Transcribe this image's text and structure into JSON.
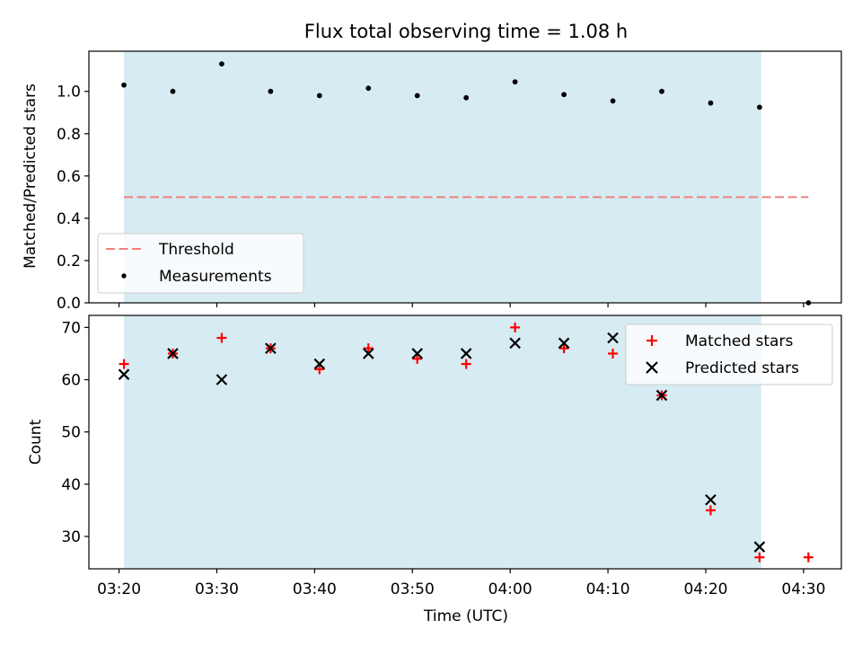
{
  "colors": {
    "observing_band": "#add8e6",
    "threshold": "#f08080",
    "measurement": "#000000",
    "matched": "#ff0000",
    "predicted": "#000000",
    "background": "#ffffff"
  },
  "chart_data": [
    {
      "type": "scatter",
      "title": "Flux total observing time = 1.08 h",
      "xlabel": "",
      "ylabel": "Matched/Predicted stars",
      "xlim": [
        "03:16:55",
        "04:33:52"
      ],
      "ylim": [
        0,
        1.19
      ],
      "y_ticks": [
        0.0,
        0.2,
        0.4,
        0.6,
        0.8,
        1.0
      ],
      "y_tick_labels": [
        "0.0",
        "0.2",
        "0.4",
        "0.6",
        "0.8",
        "1.0"
      ],
      "shaded_region": {
        "x_start": "03:20:30",
        "x_end": "04:25:40"
      },
      "grid": false,
      "legend": {
        "location": "lower left",
        "entries": [
          "Threshold",
          "Measurements"
        ]
      },
      "threshold": {
        "name": "Threshold",
        "x_start": "03:20:30",
        "x_end": "04:30:30",
        "y": 0.5,
        "style": "dashed"
      },
      "series": [
        {
          "name": "Measurements",
          "marker": "dot",
          "x": [
            "03:20:30",
            "03:25:30",
            "03:30:30",
            "03:35:30",
            "03:40:30",
            "03:45:30",
            "03:50:30",
            "03:55:30",
            "04:00:30",
            "04:05:30",
            "04:10:30",
            "04:15:30",
            "04:20:30",
            "04:25:30",
            "04:30:30"
          ],
          "y": [
            1.03,
            1.0,
            1.13,
            1.0,
            0.98,
            1.015,
            0.98,
            0.97,
            1.045,
            0.985,
            0.955,
            1.0,
            0.945,
            0.925,
            0.0
          ]
        }
      ]
    },
    {
      "type": "scatter",
      "title": "",
      "xlabel": "Time (UTC)",
      "ylabel": "Count",
      "xlim": [
        "03:16:55",
        "04:33:52"
      ],
      "ylim": [
        23.8,
        72.3
      ],
      "y_ticks": [
        30,
        40,
        50,
        60,
        70
      ],
      "y_tick_labels": [
        "30",
        "40",
        "50",
        "60",
        "70"
      ],
      "x_ticks": [
        "03:20",
        "03:30",
        "03:40",
        "03:50",
        "04:00",
        "04:10",
        "04:20",
        "04:30"
      ],
      "shaded_region": {
        "x_start": "03:20:30",
        "x_end": "04:25:40"
      },
      "grid": false,
      "legend": {
        "location": "upper right",
        "entries": [
          "Matched stars",
          "Predicted stars"
        ]
      },
      "series": [
        {
          "name": "Matched stars",
          "marker": "plus",
          "x": [
            "03:20:30",
            "03:25:30",
            "03:30:30",
            "03:35:30",
            "03:40:30",
            "03:45:30",
            "03:50:30",
            "03:55:30",
            "04:00:30",
            "04:05:30",
            "04:10:30",
            "04:15:30",
            "04:20:30",
            "04:25:30",
            "04:30:30"
          ],
          "y": [
            63,
            65,
            68,
            66,
            62,
            66,
            64,
            63,
            70,
            66,
            65,
            57,
            35,
            26,
            26
          ]
        },
        {
          "name": "Predicted stars",
          "marker": "x",
          "x": [
            "03:20:30",
            "03:25:30",
            "03:30:30",
            "03:35:30",
            "03:40:30",
            "03:45:30",
            "03:50:30",
            "03:55:30",
            "04:00:30",
            "04:05:30",
            "04:10:30",
            "04:15:30",
            "04:20:30",
            "04:25:30"
          ],
          "y": [
            61,
            65,
            60,
            66,
            63,
            65,
            65,
            65,
            67,
            67,
            68,
            57,
            37,
            28
          ]
        }
      ]
    }
  ]
}
